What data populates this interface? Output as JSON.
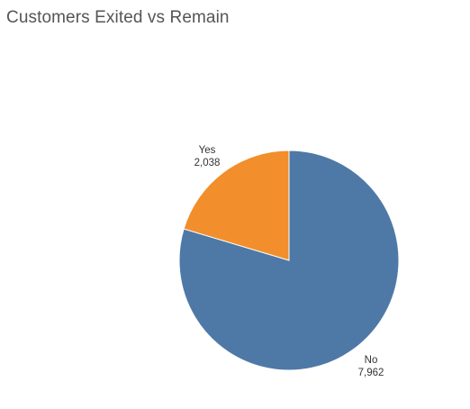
{
  "chart_data": {
    "type": "pie",
    "title": "Customers Exited vs Remain",
    "slices": [
      {
        "label": "No",
        "value": 7962,
        "value_label": "7,962",
        "color": "#4e79a7"
      },
      {
        "label": "Yes",
        "value": 2038,
        "value_label": "2,038",
        "color": "#f28e2b"
      }
    ],
    "legend": "none"
  }
}
